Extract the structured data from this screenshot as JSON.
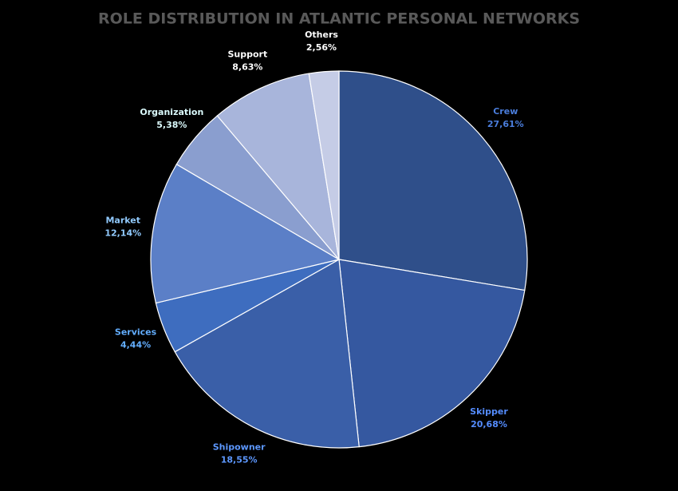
{
  "chart_data": {
    "type": "pie",
    "title": "ROLE DISTRIBUTION IN ATLANTIC PERSONAL NETWORKS",
    "categories": [
      "Crew",
      "Skipper",
      "Shipowner",
      "Services",
      "Market",
      "Organization",
      "Support",
      "Others"
    ],
    "values": [
      27.61,
      20.68,
      18.55,
      4.44,
      12.14,
      5.38,
      8.63,
      2.56
    ],
    "value_labels": [
      "27,61%",
      "20,68%",
      "18,55%",
      "4,44%",
      "12,14%",
      "5,38%",
      "8,63%",
      "2,56%"
    ],
    "colors": [
      "#2f4f8a",
      "#3558a0",
      "#3a5fa8",
      "#3e6dbf",
      "#5b7fc7",
      "#8a9ecf",
      "#a8b5db",
      "#c5cce6"
    ]
  }
}
